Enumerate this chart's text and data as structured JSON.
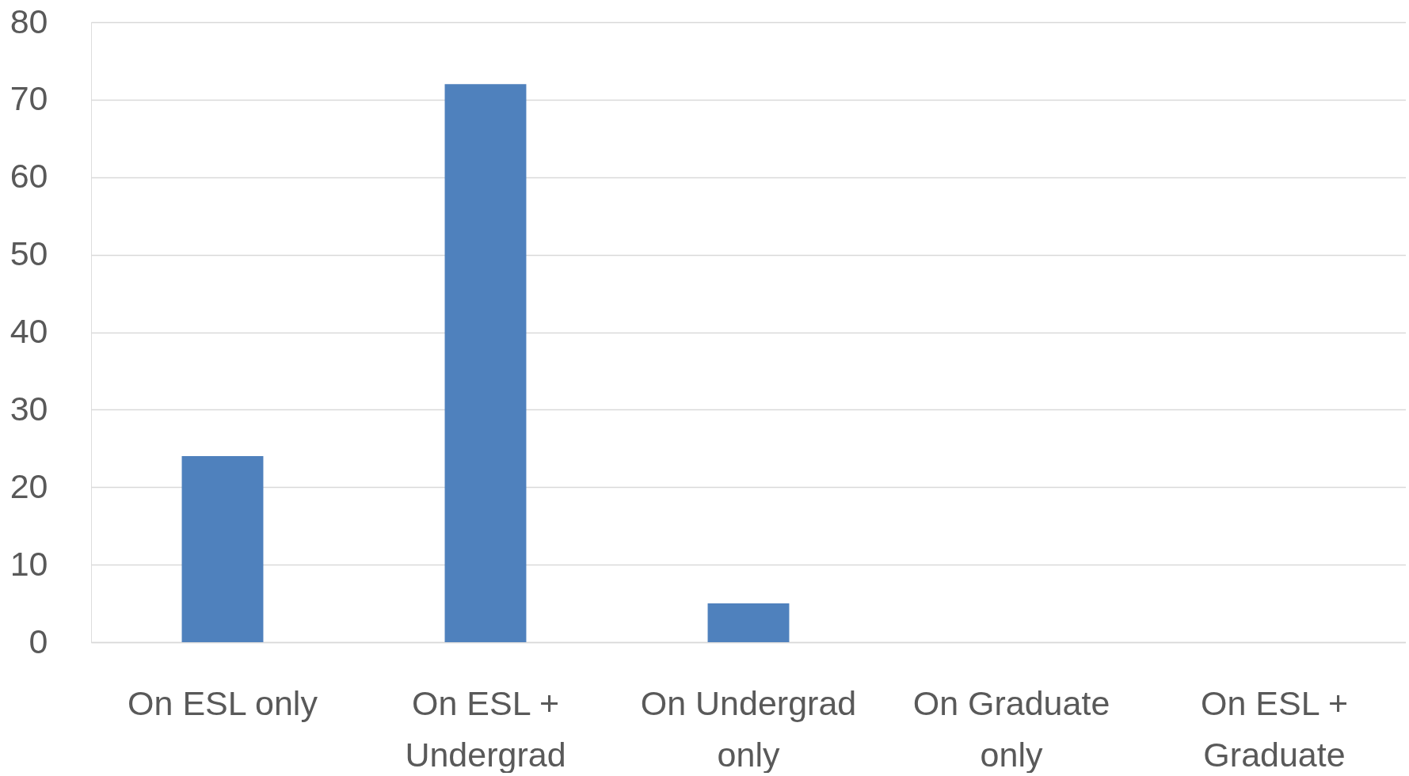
{
  "chart_data": {
    "type": "bar",
    "categories": [
      "On ESL only",
      "On ESL + Undergrad",
      "On Undergrad only",
      "On Graduate only",
      "On ESL + Graduate"
    ],
    "values": [
      24,
      72,
      5,
      0,
      0
    ],
    "color": "#4f81bd",
    "ylim": [
      0,
      80
    ],
    "yticks": [
      0,
      10,
      20,
      30,
      40,
      50,
      60,
      70,
      80
    ],
    "grid": "y"
  }
}
